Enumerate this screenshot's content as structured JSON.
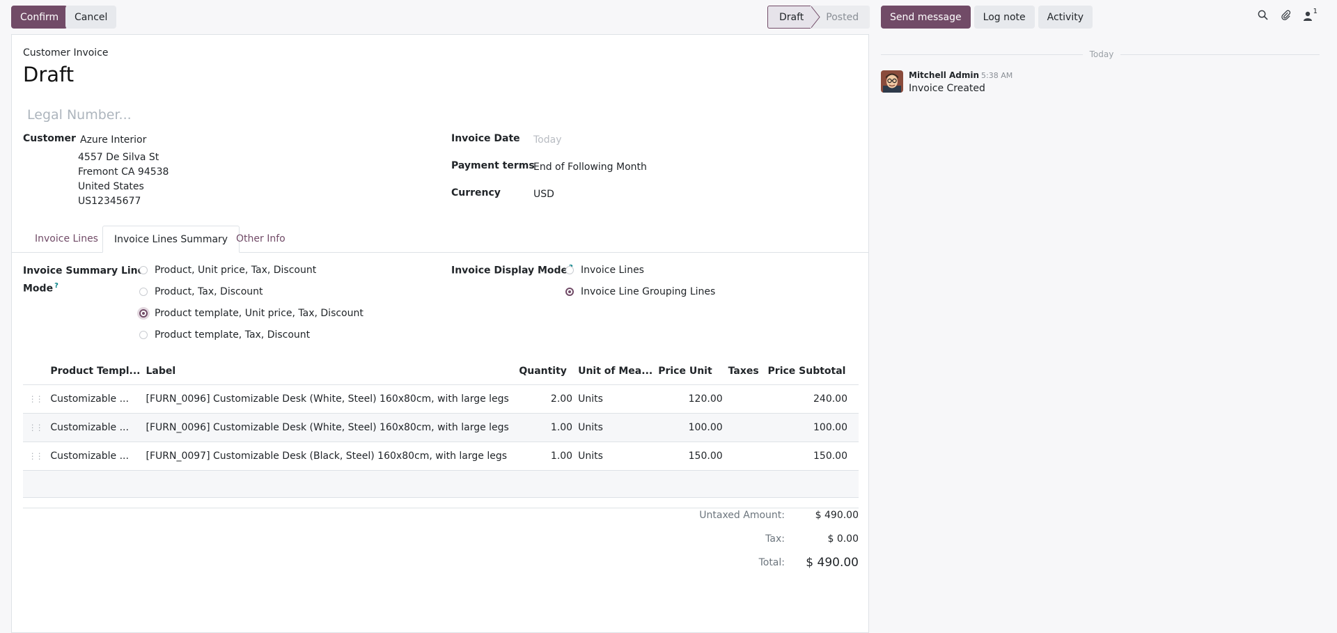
{
  "toolbar": {
    "confirm_label": "Confirm",
    "cancel_label": "Cancel"
  },
  "status": {
    "steps": [
      "Draft",
      "Posted"
    ],
    "current": "Draft"
  },
  "form": {
    "subtitle": "Customer Invoice",
    "title": "Draft",
    "legal_number_placeholder": "Legal Number...",
    "customer_label": "Customer",
    "customer_name": "Azure Interior",
    "customer_address": [
      "4557 De Silva St",
      "Fremont CA 94538",
      "United States",
      "US12345677"
    ],
    "invoice_date_label": "Invoice Date",
    "invoice_date_placeholder": "Today",
    "payment_terms_label": "Payment terms",
    "payment_terms_value": "End of Following Month",
    "currency_label": "Currency",
    "currency_value": "USD"
  },
  "tabs": [
    "Invoice Lines",
    "Invoice Lines Summary",
    "Other Info"
  ],
  "active_tab": "Invoice Lines Summary",
  "summary": {
    "line_mode_label_1": "Invoice Summary Line",
    "line_mode_label_2": "Mode",
    "help_mark": "?",
    "line_mode_options": [
      "Product, Unit price, Tax, Discount",
      "Product, Tax, Discount",
      "Product template, Unit price, Tax, Discount",
      "Product template, Tax, Discount"
    ],
    "line_mode_selected": 2,
    "display_mode_label": "Invoice Display Mode",
    "display_mode_options": [
      "Invoice Lines",
      "Invoice Line Grouping Lines"
    ],
    "display_mode_selected": 1
  },
  "table": {
    "columns": [
      "Product Templ...",
      "Label",
      "Quantity",
      "Unit of Mea...",
      "Price Unit",
      "Taxes",
      "Price Subtotal"
    ],
    "rows": [
      {
        "product": "Customizable ...",
        "label": "[FURN_0096] Customizable Desk (White, Steel) 160x80cm, with large legs",
        "qty": "2.00",
        "uom": "Units",
        "price": "120.00",
        "taxes": "",
        "subtotal": "240.00"
      },
      {
        "product": "Customizable ...",
        "label": "[FURN_0096] Customizable Desk (White, Steel) 160x80cm, with large legs",
        "qty": "1.00",
        "uom": "Units",
        "price": "100.00",
        "taxes": "",
        "subtotal": "100.00"
      },
      {
        "product": "Customizable ...",
        "label": "[FURN_0097] Customizable Desk (Black, Steel) 160x80cm, with large legs",
        "qty": "1.00",
        "uom": "Units",
        "price": "150.00",
        "taxes": "",
        "subtotal": "150.00"
      }
    ]
  },
  "totals": {
    "untaxed_label": "Untaxed Amount:",
    "untaxed_value": "$ 490.00",
    "tax_label": "Tax:",
    "tax_value": "$ 0.00",
    "total_label": "Total:",
    "total_value": "$ 490.00"
  },
  "chatter": {
    "send_message_label": "Send message",
    "log_note_label": "Log note",
    "activity_label": "Activity",
    "followers_count": "1",
    "date_separator": "Today",
    "messages": [
      {
        "author": "Mitchell Admin",
        "time": "5:38 AM",
        "body": "Invoice Created"
      }
    ]
  },
  "colors": {
    "primary": "#714b67",
    "help": "#017e84"
  }
}
